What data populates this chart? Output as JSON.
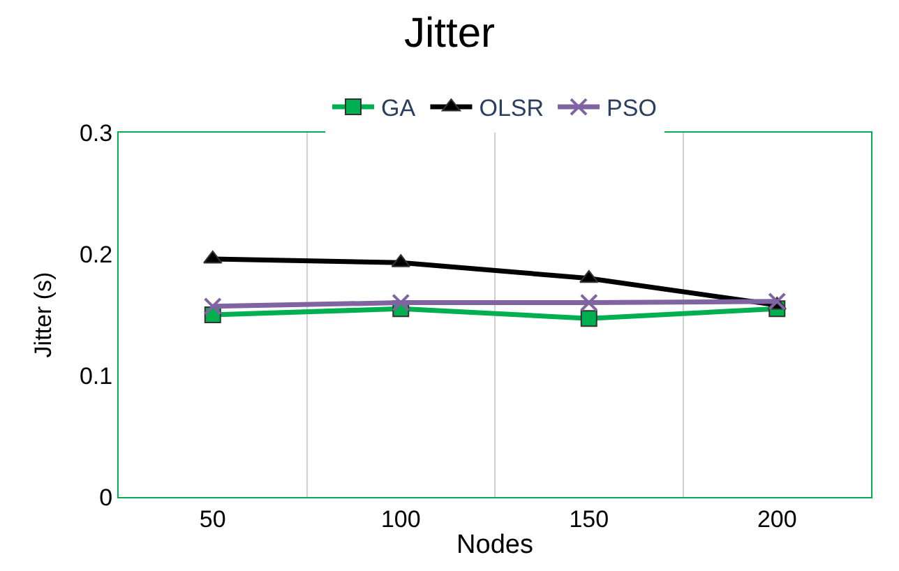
{
  "chart_data": {
    "type": "line",
    "title": "Jitter",
    "xlabel": "Nodes",
    "ylabel": "Jitter (s)",
    "categories": [
      "50",
      "100",
      "150",
      "200"
    ],
    "series": [
      {
        "name": "GA",
        "color": "#00b050",
        "marker": "square",
        "values": [
          0.15,
          0.155,
          0.147,
          0.155
        ]
      },
      {
        "name": "OLSR",
        "color": "#000000",
        "marker": "triangle",
        "values": [
          0.196,
          0.193,
          0.18,
          0.158
        ]
      },
      {
        "name": "PSO",
        "color": "#8064a2",
        "marker": "cross",
        "values": [
          0.157,
          0.16,
          0.16,
          0.161
        ]
      }
    ],
    "ylim": [
      0,
      0.3
    ],
    "yticks": [
      0,
      0.1,
      0.2,
      0.3
    ],
    "grid": "x",
    "legend": "top",
    "line_style": "solid"
  }
}
